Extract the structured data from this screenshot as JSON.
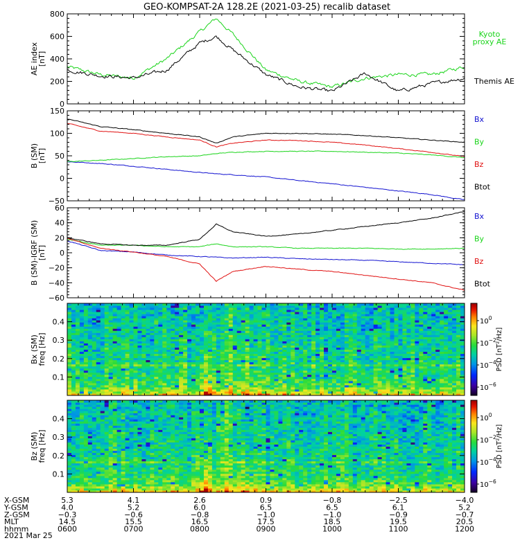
{
  "title": "GEO-KOMPSAT-2A 128.2E (2021-03-25) recalib dataset",
  "colors": {
    "black": "#000000",
    "green": "#19d419",
    "red": "#e01010",
    "blue": "#1010d0"
  },
  "chart_data": [
    {
      "id": "ae",
      "type": "line",
      "ylabel": [
        "AE index",
        "[nT]"
      ],
      "ylim": [
        0,
        800
      ],
      "yticks": [
        0,
        200,
        400,
        600,
        800
      ],
      "x": [
        "0600",
        "0630",
        "0700",
        "0730",
        "0800",
        "0815",
        "0830",
        "0900",
        "0930",
        "1000",
        "1030",
        "1100",
        "1130",
        "1200"
      ],
      "series": [
        {
          "name": "Kyoto proxy AE",
          "legend": [
            "Kyoto",
            "proxy AE"
          ],
          "color": "green",
          "values": [
            330,
            260,
            230,
            400,
            640,
            760,
            620,
            300,
            200,
            150,
            230,
            260,
            260,
            330
          ]
        },
        {
          "name": "Themis AE",
          "legend": [
            "Themis AE"
          ],
          "color": "black",
          "values": [
            300,
            250,
            230,
            300,
            540,
            600,
            480,
            260,
            150,
            110,
            270,
            110,
            180,
            230
          ]
        }
      ]
    },
    {
      "id": "bsm",
      "type": "line",
      "ylabel": [
        "B (SM)",
        "[nT]"
      ],
      "ylim": [
        -50,
        150
      ],
      "yticks": [
        -50,
        0,
        50,
        100,
        150
      ],
      "x": [
        "0600",
        "0630",
        "0700",
        "0730",
        "0800",
        "0815",
        "0830",
        "0900",
        "0930",
        "1000",
        "1030",
        "1100",
        "1130",
        "1200"
      ],
      "series": [
        {
          "name": "Bx",
          "color": "blue",
          "values": [
            37,
            33,
            27,
            20,
            13,
            10,
            8,
            3,
            -5,
            -12,
            -20,
            -28,
            -36,
            -48
          ]
        },
        {
          "name": "By",
          "color": "green",
          "values": [
            37,
            40,
            44,
            48,
            50,
            55,
            58,
            60,
            60,
            60,
            58,
            56,
            52,
            46
          ]
        },
        {
          "name": "Bz",
          "color": "red",
          "values": [
            122,
            105,
            100,
            92,
            85,
            70,
            78,
            85,
            84,
            80,
            74,
            66,
            58,
            48
          ]
        },
        {
          "name": "Btot",
          "color": "black",
          "values": [
            132,
            115,
            108,
            100,
            92,
            78,
            92,
            100,
            100,
            98,
            95,
            90,
            85,
            80
          ]
        }
      ]
    },
    {
      "id": "bigrf",
      "type": "line",
      "ylabel": [
        "B (SM)-IGRF (SM)",
        "[nT]"
      ],
      "ylim": [
        -60,
        60
      ],
      "yticks": [
        -60,
        -40,
        -20,
        0,
        20,
        40,
        60
      ],
      "x": [
        "0600",
        "0630",
        "0700",
        "0730",
        "0800",
        "0815",
        "0830",
        "0900",
        "0930",
        "1000",
        "1030",
        "1100",
        "1130",
        "1200"
      ],
      "series": [
        {
          "name": "Bx",
          "color": "blue",
          "values": [
            16,
            3,
            1,
            -3,
            -5,
            -6,
            -7,
            -6,
            -8,
            -9,
            -10,
            -12,
            -14,
            -16
          ]
        },
        {
          "name": "By",
          "color": "green",
          "values": [
            18,
            10,
            10,
            8,
            8,
            12,
            8,
            8,
            6,
            6,
            6,
            5,
            5,
            6
          ]
        },
        {
          "name": "Bz",
          "color": "red",
          "values": [
            19,
            6,
            1,
            -5,
            -15,
            -38,
            -25,
            -18,
            -22,
            -25,
            -30,
            -35,
            -40,
            -50
          ]
        },
        {
          "name": "Btot",
          "color": "black",
          "values": [
            20,
            12,
            10,
            10,
            18,
            38,
            28,
            22,
            25,
            30,
            35,
            40,
            46,
            55
          ]
        }
      ]
    },
    {
      "id": "bxspec",
      "type": "heatmap",
      "ylabel": [
        "Bx (SM)",
        "freq [Hz]"
      ],
      "ylim": [
        0,
        0.5
      ],
      "yticks": [
        0.1,
        0.2,
        0.3,
        0.4
      ],
      "colorbar": {
        "label": "PSD [nT²/Hz]",
        "ticks": [
          "10^0",
          "10^-2",
          "10^-4",
          "10^-6"
        ]
      }
    },
    {
      "id": "bzspec",
      "type": "heatmap",
      "ylabel": [
        "Bz (SM)",
        "freq [Hz]"
      ],
      "ylim": [
        0,
        0.5
      ],
      "yticks": [
        0.1,
        0.2,
        0.3,
        0.4
      ],
      "colorbar": {
        "label": "PSD [nT²/Hz]",
        "ticks": [
          "10^0",
          "10^-2",
          "10^-4",
          "10^-6"
        ]
      }
    }
  ],
  "ephemeris": {
    "rows": [
      {
        "label": "X-GSM",
        "values": [
          "5.3",
          "4.1",
          "2.6",
          "0.9",
          "-0.8",
          "-2.5",
          "-4.0"
        ]
      },
      {
        "label": "Y-GSM",
        "values": [
          "4.0",
          "5.2",
          "6.0",
          "6.5",
          "6.5",
          "6.1",
          "5.2"
        ]
      },
      {
        "label": "Z-GSM",
        "values": [
          "-0.3",
          "-0.6",
          "-0.8",
          "-1.0",
          "-1.0",
          "-0.9",
          "-0.7"
        ]
      },
      {
        "label": "MLT",
        "values": [
          "14.5",
          "15.5",
          "16.5",
          "17.5",
          "18.5",
          "19.5",
          "20.5"
        ]
      },
      {
        "label": "hhmm",
        "values": [
          "0600",
          "0700",
          "0800",
          "0900",
          "1000",
          "1100",
          "1200"
        ]
      }
    ],
    "date": "2021 Mar 25"
  }
}
